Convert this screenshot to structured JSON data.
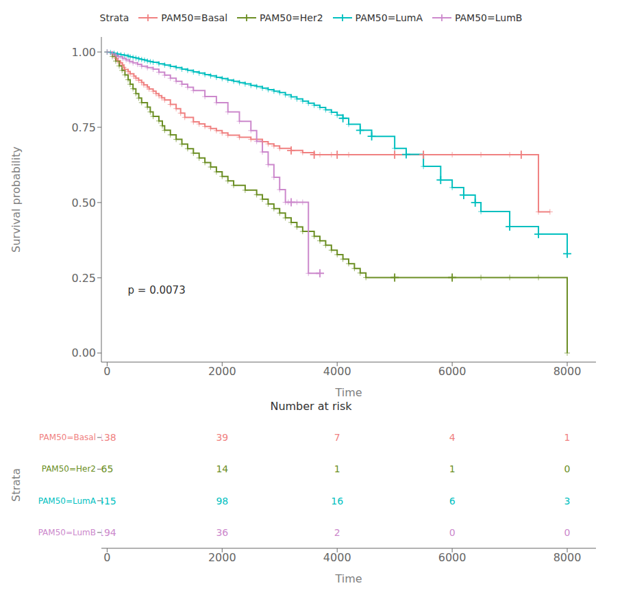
{
  "chart_data": [
    {
      "type": "line",
      "line_style": "step",
      "marker": "plus",
      "grid": false,
      "legend": "top",
      "legend_title": "Strata",
      "xlabel": "Time",
      "ylabel": "Survival probability",
      "xlim": [
        -100,
        8500
      ],
      "xticks": [
        0,
        2000,
        4000,
        6000,
        8000
      ],
      "ylim": [
        -0.03,
        1.05
      ],
      "yticks": [
        {
          "value": 0.0,
          "label": "0.00"
        },
        {
          "value": 0.25,
          "label": "0.25"
        },
        {
          "value": 0.5,
          "label": "0.50"
        },
        {
          "value": 0.75,
          "label": "0.75"
        },
        {
          "value": 1.0,
          "label": "1.00"
        }
      ],
      "annotations": [
        {
          "text": "p = 0.0073",
          "x": 300,
          "y": 0.21
        }
      ],
      "series": [
        {
          "name": "PAM50=Basal",
          "color": "#F08080",
          "x": [
            0,
            91,
            126,
            163,
            183,
            230,
            265,
            290,
            304,
            365,
            400,
            465,
            500,
            548,
            600,
            637,
            700,
            730,
            800,
            850,
            900,
            950,
            1000,
            1100,
            1200,
            1278,
            1350,
            1500,
            1600,
            1700,
            1800,
            1900,
            2000,
            2100,
            2300,
            2500,
            2700,
            2800,
            2900,
            3000,
            3200,
            3400,
            3600,
            3700,
            3900,
            4000,
            4200,
            5000,
            5500,
            6000,
            6500,
            7000,
            7200,
            7500,
            7700
          ],
          "values": [
            1.0,
            0.993,
            0.986,
            0.978,
            0.971,
            0.964,
            0.957,
            0.949,
            0.942,
            0.935,
            0.928,
            0.92,
            0.913,
            0.906,
            0.899,
            0.891,
            0.884,
            0.877,
            0.87,
            0.862,
            0.855,
            0.848,
            0.841,
            0.826,
            0.812,
            0.797,
            0.783,
            0.768,
            0.761,
            0.753,
            0.746,
            0.739,
            0.731,
            0.724,
            0.717,
            0.71,
            0.702,
            0.695,
            0.688,
            0.68,
            0.673,
            0.666,
            0.659,
            0.659,
            0.659,
            0.659,
            0.659,
            0.659,
            0.659,
            0.659,
            0.659,
            0.659,
            0.659,
            0.469,
            0.469
          ],
          "censored_x": [
            3200,
            3600,
            4000,
            5000,
            5500,
            7200
          ],
          "censored_values": [
            0.673,
            0.659,
            0.659,
            0.659,
            0.659,
            0.659
          ]
        },
        {
          "name": "PAM50=Her2",
          "color": "#6B8E23",
          "x": [
            0,
            91,
            150,
            210,
            260,
            310,
            365,
            400,
            450,
            500,
            550,
            600,
            700,
            750,
            800,
            900,
            960,
            1000,
            1100,
            1200,
            1300,
            1400,
            1500,
            1600,
            1700,
            1800,
            1900,
            2000,
            2100,
            2200,
            2400,
            2600,
            2700,
            2800,
            2900,
            3000,
            3100,
            3200,
            3300,
            3400,
            3600,
            3700,
            3800,
            3900,
            4000,
            4100,
            4200,
            4300,
            4400,
            4500,
            5000,
            6000,
            6500,
            7000,
            7500,
            8000
          ],
          "values": [
            1.0,
            0.985,
            0.97,
            0.954,
            0.939,
            0.924,
            0.908,
            0.893,
            0.878,
            0.862,
            0.847,
            0.832,
            0.817,
            0.801,
            0.786,
            0.771,
            0.755,
            0.74,
            0.725,
            0.71,
            0.694,
            0.679,
            0.664,
            0.648,
            0.633,
            0.618,
            0.602,
            0.587,
            0.572,
            0.557,
            0.541,
            0.526,
            0.511,
            0.495,
            0.48,
            0.465,
            0.449,
            0.434,
            0.419,
            0.404,
            0.388,
            0.373,
            0.358,
            0.342,
            0.327,
            0.312,
            0.297,
            0.281,
            0.266,
            0.251,
            0.251,
            0.251,
            0.251,
            0.251,
            0.251,
            0.0
          ],
          "censored_x": [
            5000,
            6000
          ],
          "censored_values": [
            0.251,
            0.251
          ]
        },
        {
          "name": "PAM50=LumA",
          "color": "#00BFBF",
          "x": [
            0,
            60,
            120,
            180,
            240,
            300,
            365,
            400,
            450,
            500,
            550,
            600,
            650,
            700,
            750,
            800,
            900,
            1000,
            1100,
            1200,
            1300,
            1400,
            1500,
            1600,
            1700,
            1800,
            1900,
            2000,
            2100,
            2200,
            2300,
            2400,
            2500,
            2600,
            2700,
            2800,
            2900,
            3000,
            3100,
            3200,
            3300,
            3400,
            3500,
            3600,
            3700,
            3800,
            3900,
            4000,
            4100,
            4200,
            4400,
            4600,
            5000,
            5200,
            5500,
            5800,
            6000,
            6200,
            6400,
            6500,
            7000,
            7500,
            8000
          ],
          "values": [
            1.0,
            0.998,
            0.996,
            0.993,
            0.991,
            0.989,
            0.986,
            0.984,
            0.982,
            0.98,
            0.977,
            0.975,
            0.973,
            0.97,
            0.968,
            0.966,
            0.961,
            0.957,
            0.952,
            0.948,
            0.943,
            0.939,
            0.934,
            0.93,
            0.925,
            0.921,
            0.916,
            0.912,
            0.907,
            0.903,
            0.898,
            0.894,
            0.889,
            0.885,
            0.88,
            0.875,
            0.87,
            0.865,
            0.858,
            0.851,
            0.844,
            0.837,
            0.83,
            0.823,
            0.816,
            0.808,
            0.8,
            0.79,
            0.78,
            0.76,
            0.74,
            0.72,
            0.68,
            0.66,
            0.62,
            0.575,
            0.55,
            0.525,
            0.5,
            0.47,
            0.42,
            0.395,
            0.33
          ],
          "censored_x": [
            4100,
            4400,
            4600,
            5200,
            5800,
            6200,
            6400,
            7000,
            7500,
            8000
          ],
          "censored_values": [
            0.78,
            0.74,
            0.72,
            0.66,
            0.575,
            0.525,
            0.5,
            0.42,
            0.395,
            0.33
          ]
        },
        {
          "name": "PAM50=LumB",
          "color": "#CC88CC",
          "x": [
            0,
            91,
            150,
            200,
            270,
            330,
            390,
            450,
            530,
            600,
            700,
            800,
            900,
            1000,
            1100,
            1200,
            1300,
            1400,
            1500,
            1700,
            1900,
            2100,
            2300,
            2500,
            2600,
            2700,
            2800,
            2900,
            3000,
            3100,
            3150,
            3200,
            3300,
            3400,
            3500,
            3700
          ],
          "values": [
            1.0,
            0.995,
            0.989,
            0.984,
            0.979,
            0.974,
            0.969,
            0.964,
            0.959,
            0.953,
            0.948,
            0.943,
            0.933,
            0.923,
            0.913,
            0.903,
            0.893,
            0.883,
            0.872,
            0.852,
            0.832,
            0.801,
            0.77,
            0.739,
            0.703,
            0.668,
            0.626,
            0.584,
            0.543,
            0.501,
            0.501,
            0.501,
            0.501,
            0.501,
            0.265,
            0.265
          ],
          "censored_x": [
            3200,
            3700
          ],
          "censored_values": [
            0.501,
            0.265
          ]
        }
      ]
    },
    {
      "type": "table",
      "title": "Number at risk",
      "xlabel": "Time",
      "ylabel": "Strata",
      "xlim": [
        -100,
        8500
      ],
      "xticks": [
        0,
        2000,
        4000,
        6000,
        8000
      ],
      "x": [
        0,
        2000,
        4000,
        6000,
        8000
      ],
      "series": [
        {
          "name": "PAM50=Basal",
          "color": "#F08080",
          "values": [
            138,
            39,
            7,
            4,
            1
          ]
        },
        {
          "name": "PAM50=Her2",
          "color": "#6B8E23",
          "values": [
            65,
            14,
            1,
            1,
            0
          ]
        },
        {
          "name": "PAM50=LumA",
          "color": "#00BFBF",
          "values": [
            415,
            98,
            16,
            6,
            3
          ]
        },
        {
          "name": "PAM50=LumB",
          "color": "#CC88CC",
          "values": [
            194,
            36,
            2,
            0,
            0
          ]
        }
      ]
    }
  ]
}
